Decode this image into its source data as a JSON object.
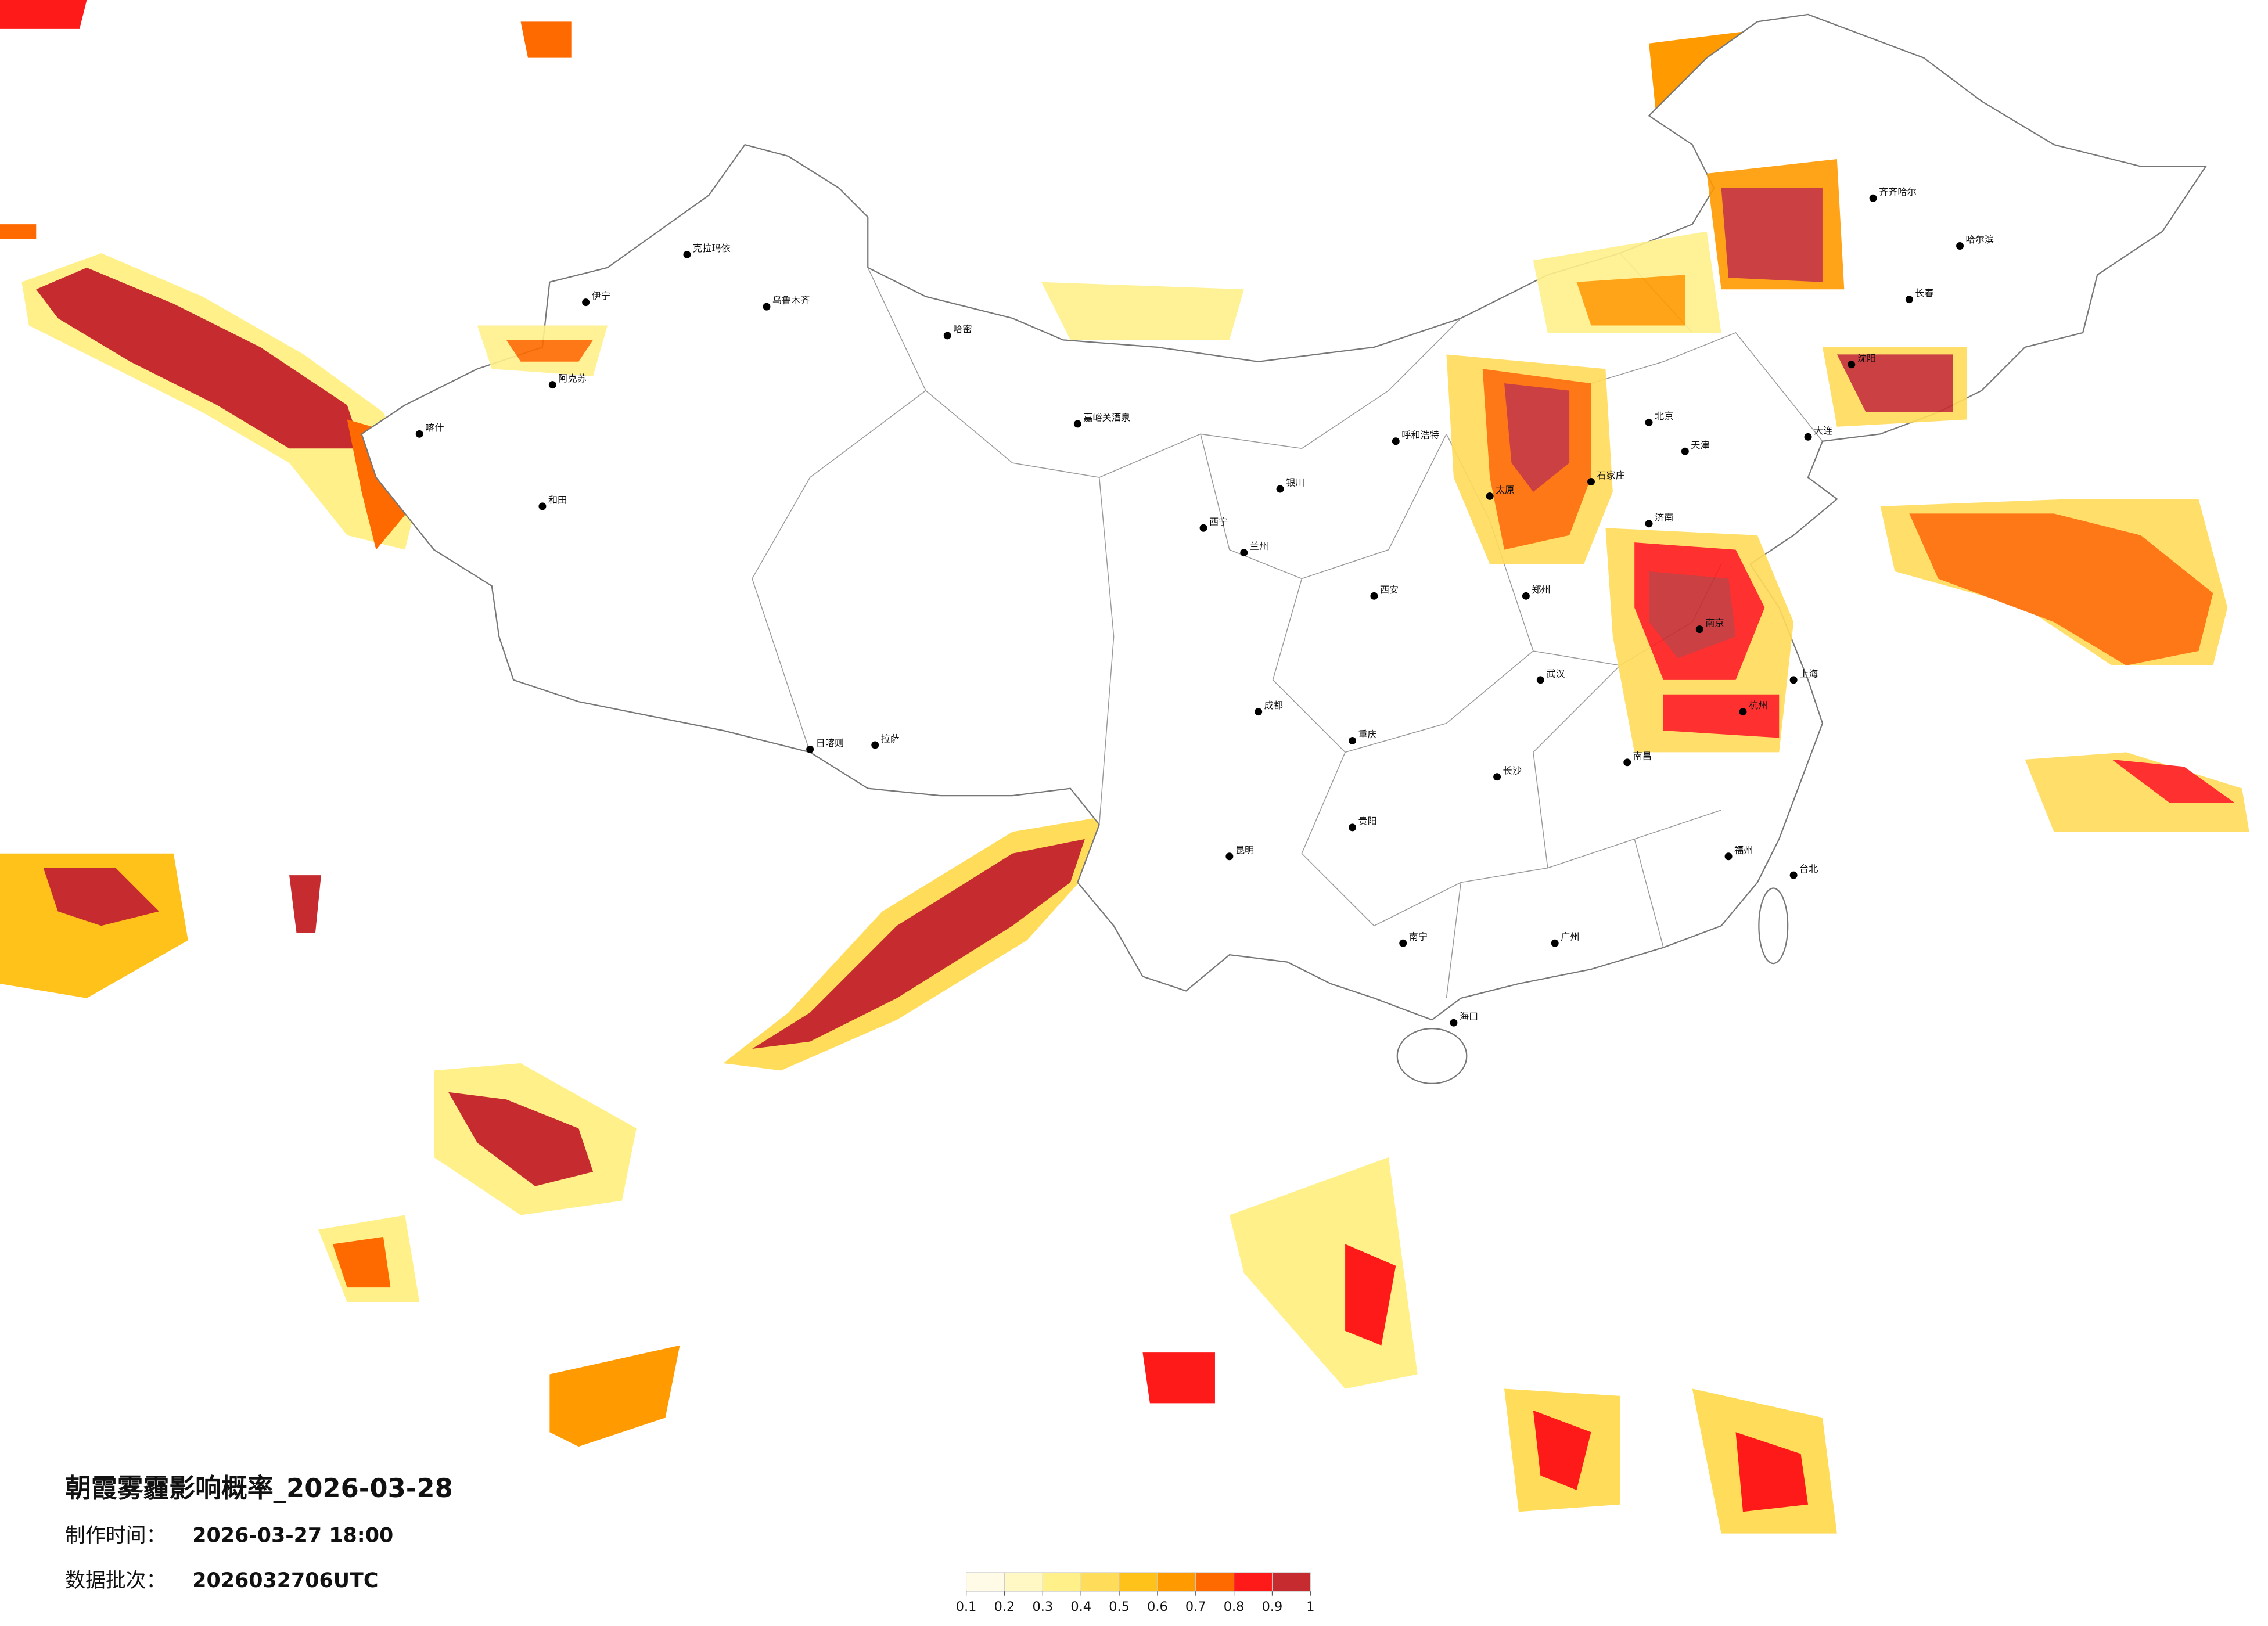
{
  "map": {
    "title": "朝霞雾霾影响概率_2026-03-28",
    "production_time_label": "制作时间：",
    "production_time": "2026-03-27 18:00",
    "batch_label": "数据批次：",
    "batch": "2026032706UTC",
    "colorbar": {
      "ticks": [
        0.1,
        0.2,
        0.3,
        0.4,
        0.5,
        0.6,
        0.7,
        0.8,
        0.9,
        1
      ],
      "colors": [
        "#fffbe6",
        "#fff8c4",
        "#fff08a",
        "#ffdc5a",
        "#ffc21a",
        "#ff9a00",
        "#ff6a00",
        "#ff1a1a",
        "#c62c2f"
      ]
    },
    "cities": [
      "乌鲁木齐",
      "克拉玛依",
      "伊宁",
      "阿克苏",
      "喀什",
      "和田",
      "哈密",
      "嘉峪关酒泉",
      "拉萨",
      "日喀则",
      "西宁",
      "兰州",
      "银川",
      "呼和浩特",
      "北京",
      "天津",
      "石家庄",
      "太原",
      "济南",
      "郑州",
      "西安",
      "成都",
      "重庆",
      "武汉",
      "南京",
      "上海",
      "杭州",
      "长沙",
      "南昌",
      "福州",
      "广州",
      "南宁",
      "昆明",
      "贵阳",
      "海口",
      "台北",
      "哈尔滨",
      "长春",
      "沈阳",
      "大连",
      "齐齐哈尔"
    ]
  }
}
